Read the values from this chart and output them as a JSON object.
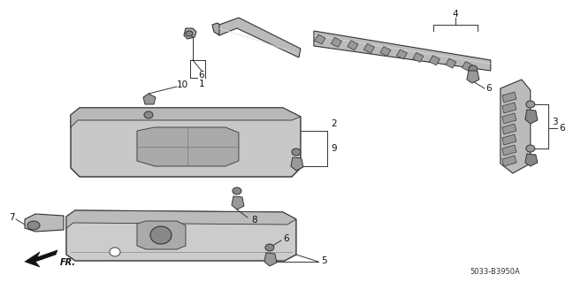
{
  "bg_color": "#ffffff",
  "diagram_code": "5033-B3950A",
  "fr_label": "FR.",
  "line_color": "#333333",
  "gray_fill": "#c8c8c8",
  "dark_fill": "#888888"
}
